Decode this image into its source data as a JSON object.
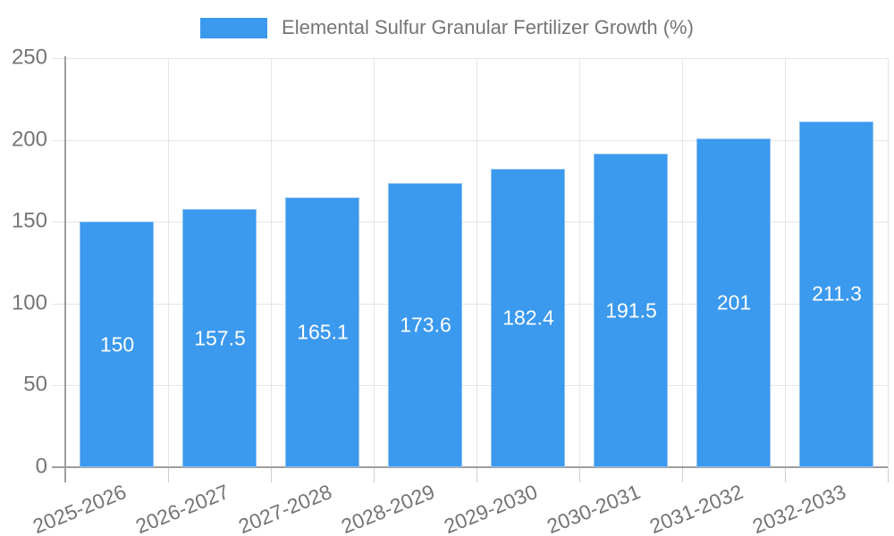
{
  "legend": {
    "label": "Elemental Sulfur Granular Fertilizer Growth (%)"
  },
  "colors": {
    "bar": "#3b99ee",
    "bar_edge": "#8ec2f5",
    "axis": "#9e9e9e",
    "grid": "#e5e5e5",
    "x_tick": "#cfcfcf",
    "tick_label": "#757575",
    "value_label": "#ffffff",
    "background": "#ffffff"
  },
  "chart_data": {
    "type": "bar",
    "title": "",
    "legend_entries": [
      "Elemental Sulfur Granular Fertilizer Growth (%)"
    ],
    "legend_position": "top-center",
    "categories": [
      "2025-2026",
      "2026-2027",
      "2027-2028",
      "2028-2029",
      "2029-2030",
      "2030-2031",
      "2031-2032",
      "2032-2033"
    ],
    "values": [
      150,
      157.5,
      165.1,
      173.6,
      182.4,
      191.5,
      201,
      211.3
    ],
    "value_labels": [
      "150",
      "157.5",
      "165.1",
      "173.6",
      "182.4",
      "191.5",
      "201",
      "211.3"
    ],
    "value_labels_position": "inside-center",
    "xlabel": "",
    "ylabel": "",
    "ylim": [
      0,
      250
    ],
    "yticks": [
      0,
      50,
      100,
      150,
      200,
      250
    ],
    "grid": true,
    "x_label_rotation_deg": -22
  }
}
